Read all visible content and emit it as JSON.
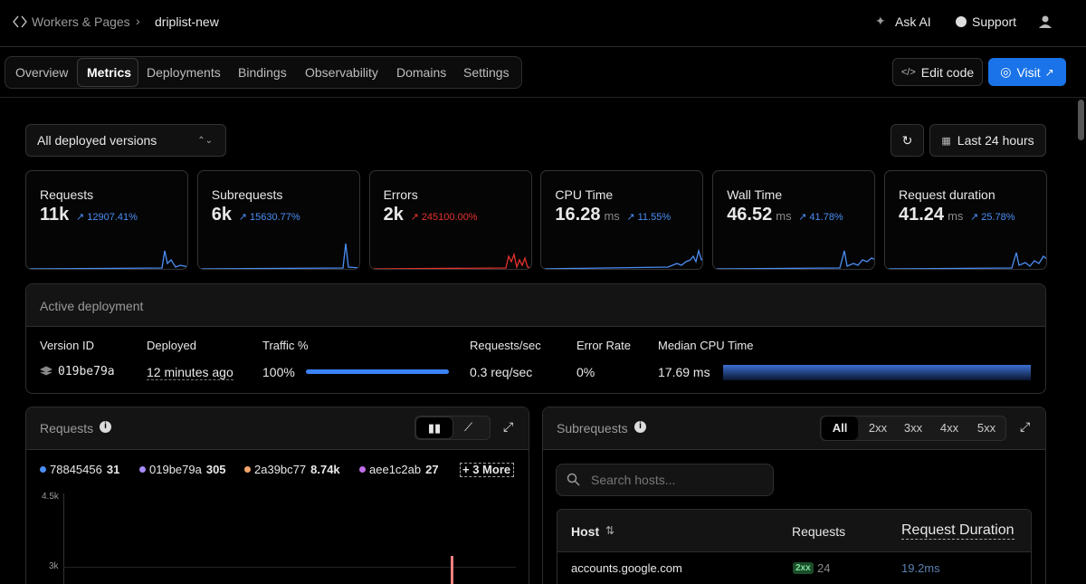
{
  "header": {
    "breadcrumb": [
      "Workers & Pages",
      "driplist-new"
    ],
    "actions": [
      "Ask AI",
      "Support"
    ]
  },
  "tabs": [
    {
      "label": "Overview",
      "active": false
    },
    {
      "label": "Metrics",
      "active": true
    },
    {
      "label": "Deployments",
      "active": false
    },
    {
      "label": "Bindings",
      "active": false
    },
    {
      "label": "Observability",
      "active": false
    },
    {
      "label": "Domains",
      "active": false
    },
    {
      "label": "Settings",
      "active": false
    }
  ],
  "buttons": {
    "edit": "Edit code",
    "visit": "Visit"
  },
  "toolbar": {
    "versions": "All deployed versions",
    "range": "Last 24 hours"
  },
  "cards": [
    {
      "name": "Requests",
      "value": "11k",
      "unit": null,
      "change": "12907.41%",
      "color": "#4b8ef5"
    },
    {
      "name": "Subrequests",
      "value": "6k",
      "unit": null,
      "change": "15630.77%",
      "color": "#4b8ef5"
    },
    {
      "name": "Errors",
      "value": "2k",
      "unit": null,
      "change": "245100.00%",
      "color": "#e5322d"
    },
    {
      "name": "CPU Time",
      "value": "16.28",
      "unit": "ms",
      "change": "11.55%",
      "color": "#4b8ef5"
    },
    {
      "name": "Wall Time",
      "value": "46.52",
      "unit": "ms",
      "change": "41.78%",
      "color": "#4b8ef5"
    },
    {
      "name": "Request duration",
      "value": "41.24",
      "unit": "ms",
      "change": "25.78%",
      "color": "#4b8ef5"
    }
  ],
  "deployment": {
    "title": "Active deployment",
    "headers": [
      "Version ID",
      "Deployed",
      "Traffic %",
      "Requests/sec",
      "Error Rate",
      "Median CPU Time"
    ],
    "values": [
      "019be79a",
      "12 minutes ago",
      "100%",
      "0.3 req/sec",
      "0%",
      "17.69 ms"
    ]
  },
  "requests": {
    "title": "Requests",
    "legend": [
      {
        "name": "78845456",
        "value": "31",
        "color": "#4b8ef5"
      },
      {
        "name": "019be79a",
        "value": "305",
        "color": "#a78bfa"
      },
      {
        "name": "2a39bc77",
        "value": "8.74k",
        "color": "#f4a56a"
      },
      {
        "name": "aee1c2ab",
        "value": "27",
        "color": "#c06ee8"
      }
    ],
    "more": "3 More",
    "axis": [
      "4.5k",
      "3k"
    ]
  },
  "subrequests": {
    "title": "Subrequests",
    "filters": [
      "All",
      "2xx",
      "3xx",
      "4xx",
      "5xx"
    ],
    "search": "Search hosts...",
    "columns": [
      "Host",
      "Requests",
      "Request Duration"
    ],
    "rows": [
      [
        "accounts.google.com",
        "2xx",
        "24",
        "19.2ms"
      ]
    ]
  }
}
